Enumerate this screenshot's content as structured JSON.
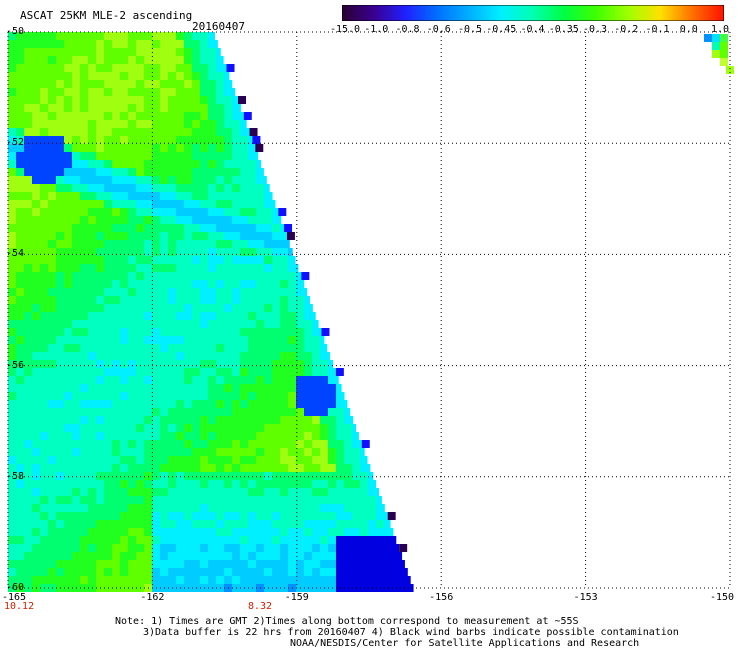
{
  "header": {
    "title": "ASCAT 25KM MLE-2 ascending",
    "date": "20160407"
  },
  "colorbar": {
    "labels": [
      "-15.0",
      "-1.0",
      "-0.8",
      "-0.6",
      "-0.5",
      "-0.45",
      "-0.4",
      "-0.35",
      "-0.3",
      "-0.2",
      "-0.1",
      "0.0",
      "1.0"
    ],
    "colors": [
      "#2a0030",
      "#3a0090",
      "#2020ff",
      "#0070ff",
      "#00b0ff",
      "#00f0ff",
      "#00ffb0",
      "#00ff40",
      "#40ff00",
      "#a0ff00",
      "#ffe000",
      "#ff7000",
      "#ff1000"
    ]
  },
  "axes": {
    "x_ticks": [
      "-165",
      "-162",
      "-159",
      "-156",
      "-153",
      "-150"
    ],
    "y_ticks": [
      "-50",
      "-52",
      "-54",
      "-56",
      "-58",
      "-60"
    ]
  },
  "times": {
    "left": "10.12",
    "middle": "8.32"
  },
  "notes": {
    "line1": "Note: 1) Times are GMT 2)Times along bottom correspond to measurement at ~55S",
    "line2": "3)Data buffer is 22 hrs from 20160407 4) Black wind barbs indicate possible contamination",
    "line3": "NOAA/NESDIS/Center for Satellite Applications and Research"
  }
}
